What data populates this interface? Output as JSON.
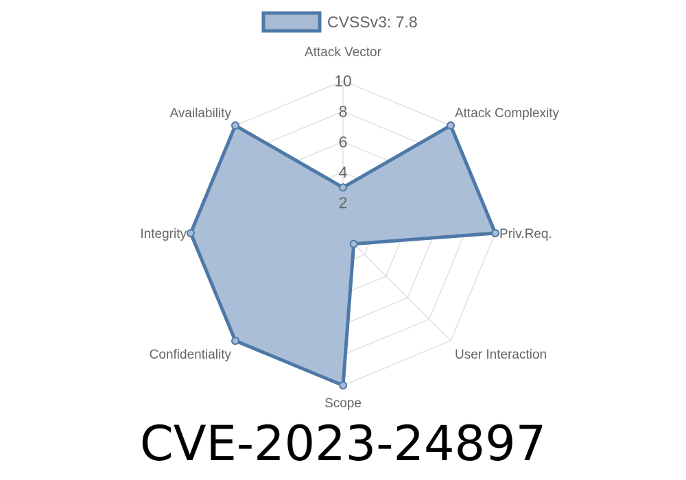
{
  "chart_data": {
    "type": "radar",
    "title": "CVE-2023-24897",
    "axes": [
      "Attack Vector",
      "Attack Complexity",
      "Priv.Req.",
      "User Interaction",
      "Scope",
      "Confidentiality",
      "Integrity",
      "Availability"
    ],
    "series": [
      {
        "name": "CVSSv3: 7.8",
        "values": [
          3,
          10,
          10,
          1,
          10,
          10,
          10,
          10
        ]
      }
    ],
    "rlim": [
      0,
      10
    ],
    "ticks": [
      "2",
      "4",
      "6",
      "8",
      "10"
    ],
    "grid": true,
    "legend": "top",
    "colors": {
      "line": "#4e79a7",
      "fill": "#a7bbd5",
      "grid": "#e0e0e0"
    }
  }
}
